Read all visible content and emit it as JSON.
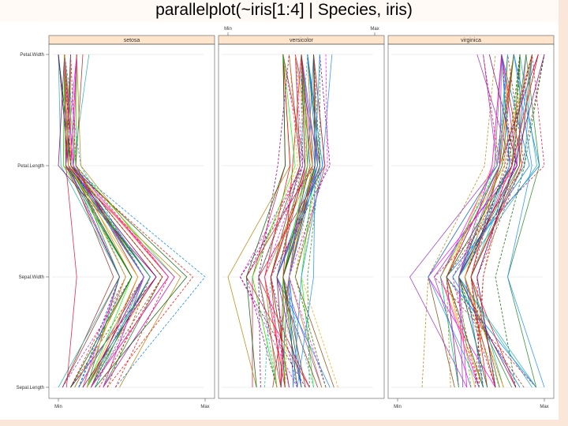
{
  "slide": {
    "title": "parallelplot(~iris[1:4] | Species, iris)"
  },
  "colors": {
    "strip": "#ffe5cc",
    "frame": "#555555",
    "gridline": "#e6e6e6",
    "series": [
      "#0080ff",
      "#ff00ff",
      "#006400",
      "#ff0000",
      "#ffa500",
      "#00ff00",
      "#8b4513",
      "#800080",
      "#a52a2a",
      "#1e90ff",
      "#228b22",
      "#dc143c",
      "#9932cc",
      "#20b2aa",
      "#b8860b"
    ]
  },
  "chart_data": {
    "type": "parallel",
    "panels": [
      "setosa",
      "versicolor",
      "virginica"
    ],
    "variables": [
      "Sepal.Length",
      "Sepal.Width",
      "Petal.Length",
      "Petal.Width"
    ],
    "scale_labels": [
      "Min",
      "Max"
    ],
    "ranges": {
      "Sepal.Length": [
        4.3,
        7.9
      ],
      "Sepal.Width": [
        2.0,
        4.4
      ],
      "Petal.Length": [
        1.0,
        6.9
      ],
      "Petal.Width": [
        0.1,
        2.5
      ]
    },
    "series": {
      "setosa": [
        [
          5.1,
          3.5,
          1.4,
          0.2
        ],
        [
          4.9,
          3.0,
          1.4,
          0.2
        ],
        [
          4.7,
          3.2,
          1.3,
          0.2
        ],
        [
          4.6,
          3.1,
          1.5,
          0.2
        ],
        [
          5.0,
          3.6,
          1.4,
          0.2
        ],
        [
          5.4,
          3.9,
          1.7,
          0.4
        ],
        [
          4.6,
          3.4,
          1.4,
          0.3
        ],
        [
          5.0,
          3.4,
          1.5,
          0.2
        ],
        [
          4.4,
          2.9,
          1.4,
          0.2
        ],
        [
          4.9,
          3.1,
          1.5,
          0.1
        ],
        [
          5.4,
          3.7,
          1.5,
          0.2
        ],
        [
          4.8,
          3.4,
          1.6,
          0.2
        ],
        [
          4.8,
          3.0,
          1.4,
          0.1
        ],
        [
          4.3,
          3.0,
          1.1,
          0.1
        ],
        [
          5.8,
          4.0,
          1.2,
          0.2
        ],
        [
          5.7,
          4.4,
          1.5,
          0.4
        ],
        [
          5.4,
          3.9,
          1.3,
          0.4
        ],
        [
          5.1,
          3.5,
          1.4,
          0.3
        ],
        [
          5.7,
          3.8,
          1.7,
          0.3
        ],
        [
          5.1,
          3.8,
          1.5,
          0.3
        ],
        [
          5.4,
          3.4,
          1.7,
          0.2
        ],
        [
          5.1,
          3.7,
          1.5,
          0.4
        ],
        [
          4.6,
          3.6,
          1.0,
          0.2
        ],
        [
          5.1,
          3.3,
          1.7,
          0.5
        ],
        [
          4.8,
          3.4,
          1.9,
          0.2
        ],
        [
          5.0,
          3.0,
          1.6,
          0.2
        ],
        [
          5.0,
          3.4,
          1.6,
          0.4
        ],
        [
          5.2,
          3.5,
          1.5,
          0.2
        ],
        [
          5.2,
          3.4,
          1.4,
          0.2
        ],
        [
          4.7,
          3.2,
          1.6,
          0.2
        ],
        [
          4.8,
          3.1,
          1.6,
          0.2
        ],
        [
          5.4,
          3.4,
          1.5,
          0.4
        ],
        [
          5.2,
          4.1,
          1.5,
          0.1
        ],
        [
          5.5,
          4.2,
          1.4,
          0.2
        ],
        [
          4.9,
          3.1,
          1.5,
          0.2
        ],
        [
          5.0,
          3.2,
          1.2,
          0.2
        ],
        [
          5.5,
          3.5,
          1.3,
          0.2
        ],
        [
          4.9,
          3.6,
          1.4,
          0.1
        ],
        [
          4.4,
          3.0,
          1.3,
          0.2
        ],
        [
          5.1,
          3.4,
          1.5,
          0.2
        ],
        [
          5.0,
          3.5,
          1.3,
          0.3
        ],
        [
          4.5,
          2.3,
          1.3,
          0.3
        ],
        [
          4.4,
          3.2,
          1.3,
          0.2
        ],
        [
          5.0,
          3.5,
          1.6,
          0.6
        ],
        [
          5.1,
          3.8,
          1.9,
          0.4
        ],
        [
          4.8,
          3.0,
          1.4,
          0.3
        ],
        [
          5.1,
          3.8,
          1.6,
          0.2
        ],
        [
          4.6,
          3.2,
          1.4,
          0.2
        ],
        [
          5.3,
          3.7,
          1.5,
          0.2
        ],
        [
          5.0,
          3.3,
          1.4,
          0.2
        ]
      ],
      "versicolor": [
        [
          7.0,
          3.2,
          4.7,
          1.4
        ],
        [
          6.4,
          3.2,
          4.5,
          1.5
        ],
        [
          6.9,
          3.1,
          4.9,
          1.5
        ],
        [
          5.5,
          2.3,
          4.0,
          1.3
        ],
        [
          6.5,
          2.8,
          4.6,
          1.5
        ],
        [
          5.7,
          2.8,
          4.5,
          1.3
        ],
        [
          6.3,
          3.3,
          4.7,
          1.6
        ],
        [
          4.9,
          2.4,
          3.3,
          1.0
        ],
        [
          6.6,
          2.9,
          4.6,
          1.3
        ],
        [
          5.2,
          2.7,
          3.9,
          1.4
        ],
        [
          5.0,
          2.0,
          3.5,
          1.0
        ],
        [
          5.9,
          3.0,
          4.2,
          1.5
        ],
        [
          6.0,
          2.2,
          4.0,
          1.0
        ],
        [
          6.1,
          2.9,
          4.7,
          1.4
        ],
        [
          5.6,
          2.9,
          3.6,
          1.3
        ],
        [
          6.7,
          3.1,
          4.4,
          1.4
        ],
        [
          5.6,
          3.0,
          4.5,
          1.5
        ],
        [
          5.8,
          2.7,
          4.1,
          1.0
        ],
        [
          6.2,
          2.2,
          4.5,
          1.5
        ],
        [
          5.6,
          2.5,
          3.9,
          1.1
        ],
        [
          5.9,
          3.2,
          4.8,
          1.8
        ],
        [
          6.1,
          2.8,
          4.0,
          1.3
        ],
        [
          6.3,
          2.5,
          4.9,
          1.5
        ],
        [
          6.1,
          2.8,
          4.7,
          1.2
        ],
        [
          6.4,
          2.9,
          4.3,
          1.3
        ],
        [
          6.6,
          3.0,
          4.4,
          1.4
        ],
        [
          6.8,
          2.8,
          4.8,
          1.4
        ],
        [
          6.7,
          3.0,
          5.0,
          1.7
        ],
        [
          6.0,
          2.9,
          4.5,
          1.5
        ],
        [
          5.7,
          2.6,
          3.5,
          1.0
        ],
        [
          5.5,
          2.4,
          3.8,
          1.1
        ],
        [
          5.5,
          2.4,
          3.7,
          1.0
        ],
        [
          5.8,
          2.7,
          3.9,
          1.2
        ],
        [
          6.0,
          2.7,
          5.1,
          1.6
        ],
        [
          5.4,
          3.0,
          4.5,
          1.5
        ],
        [
          6.0,
          3.4,
          4.5,
          1.6
        ],
        [
          6.7,
          3.1,
          4.7,
          1.5
        ],
        [
          6.3,
          2.3,
          4.4,
          1.3
        ],
        [
          5.6,
          3.0,
          4.1,
          1.3
        ],
        [
          5.5,
          2.5,
          4.0,
          1.3
        ],
        [
          5.5,
          2.6,
          4.4,
          1.2
        ],
        [
          6.1,
          3.0,
          4.6,
          1.4
        ],
        [
          5.8,
          2.6,
          4.0,
          1.2
        ],
        [
          5.0,
          2.3,
          3.3,
          1.0
        ],
        [
          5.6,
          2.7,
          4.2,
          1.3
        ],
        [
          5.7,
          3.0,
          4.2,
          1.2
        ],
        [
          5.7,
          2.9,
          4.2,
          1.3
        ],
        [
          6.2,
          2.9,
          4.3,
          1.3
        ],
        [
          5.1,
          2.5,
          3.0,
          1.1
        ],
        [
          5.7,
          2.8,
          4.1,
          1.3
        ]
      ],
      "virginica": [
        [
          6.3,
          3.3,
          6.0,
          2.5
        ],
        [
          5.8,
          2.7,
          5.1,
          1.9
        ],
        [
          7.1,
          3.0,
          5.9,
          2.1
        ],
        [
          6.3,
          2.9,
          5.6,
          1.8
        ],
        [
          6.5,
          3.0,
          5.8,
          2.2
        ],
        [
          7.6,
          3.0,
          6.6,
          2.1
        ],
        [
          4.9,
          2.5,
          4.5,
          1.7
        ],
        [
          7.3,
          2.9,
          6.3,
          1.8
        ],
        [
          6.7,
          2.5,
          5.8,
          1.8
        ],
        [
          7.2,
          3.6,
          6.1,
          2.5
        ],
        [
          6.5,
          3.2,
          5.1,
          2.0
        ],
        [
          6.4,
          2.7,
          5.3,
          1.9
        ],
        [
          6.8,
          3.0,
          5.5,
          2.1
        ],
        [
          5.7,
          2.5,
          5.0,
          2.0
        ],
        [
          5.8,
          2.8,
          5.1,
          2.4
        ],
        [
          6.4,
          3.2,
          5.3,
          2.3
        ],
        [
          6.5,
          3.0,
          5.5,
          1.8
        ],
        [
          7.7,
          3.8,
          6.7,
          2.2
        ],
        [
          7.7,
          2.6,
          6.9,
          2.3
        ],
        [
          6.0,
          2.2,
          5.0,
          1.5
        ],
        [
          6.9,
          3.2,
          5.7,
          2.3
        ],
        [
          5.6,
          2.8,
          4.9,
          2.0
        ],
        [
          7.7,
          2.8,
          6.7,
          2.0
        ],
        [
          6.3,
          2.7,
          4.9,
          1.8
        ],
        [
          6.7,
          3.3,
          5.7,
          2.1
        ],
        [
          7.2,
          3.2,
          6.0,
          1.8
        ],
        [
          6.2,
          2.8,
          4.8,
          1.8
        ],
        [
          6.1,
          3.0,
          4.9,
          1.8
        ],
        [
          6.4,
          2.8,
          5.6,
          2.1
        ],
        [
          7.2,
          3.0,
          5.8,
          1.6
        ],
        [
          7.4,
          2.8,
          6.1,
          1.9
        ],
        [
          7.9,
          3.8,
          6.4,
          2.0
        ],
        [
          6.4,
          2.8,
          5.6,
          2.2
        ],
        [
          6.3,
          2.8,
          5.1,
          1.5
        ],
        [
          6.1,
          2.6,
          5.6,
          1.4
        ],
        [
          7.7,
          3.0,
          6.1,
          2.3
        ],
        [
          6.3,
          3.4,
          5.6,
          2.4
        ],
        [
          6.4,
          3.1,
          5.5,
          1.8
        ],
        [
          6.0,
          3.0,
          4.8,
          1.8
        ],
        [
          6.9,
          3.1,
          5.4,
          2.1
        ],
        [
          6.7,
          3.1,
          5.6,
          2.4
        ],
        [
          6.9,
          3.1,
          5.1,
          2.3
        ],
        [
          5.8,
          2.7,
          5.1,
          1.9
        ],
        [
          6.8,
          3.2,
          5.9,
          2.3
        ],
        [
          6.7,
          3.3,
          5.7,
          2.5
        ],
        [
          6.7,
          3.0,
          5.2,
          2.3
        ],
        [
          6.3,
          2.5,
          5.0,
          1.9
        ],
        [
          6.5,
          3.0,
          5.2,
          2.0
        ],
        [
          6.2,
          3.4,
          5.4,
          2.3
        ],
        [
          5.9,
          3.0,
          5.1,
          1.8
        ]
      ]
    }
  }
}
